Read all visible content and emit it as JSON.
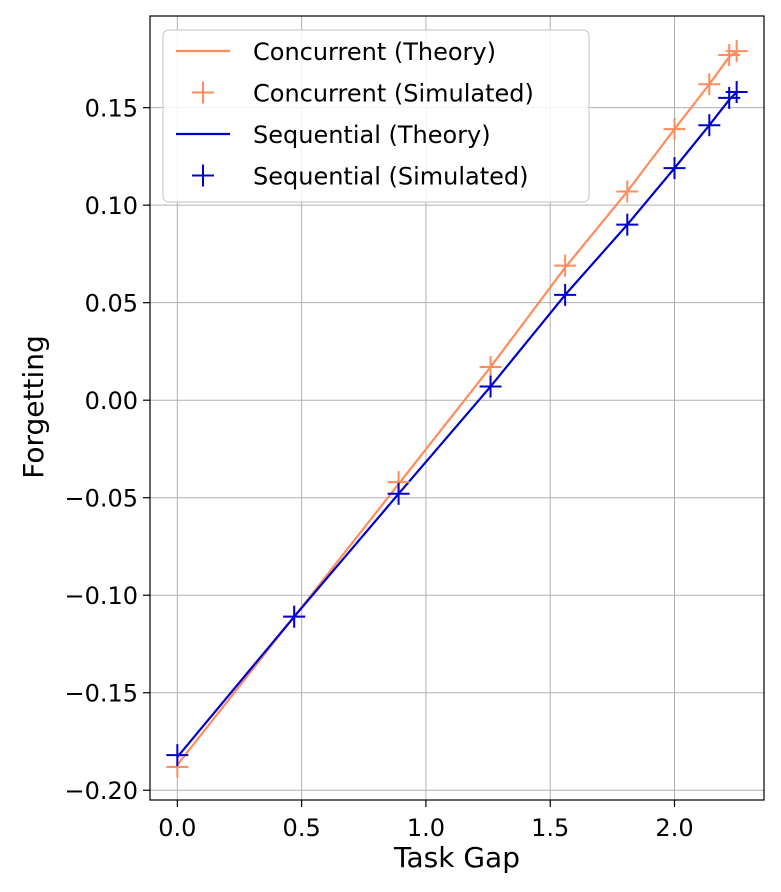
{
  "chart_data": {
    "type": "line",
    "title": "",
    "xlabel": "Task Gap",
    "ylabel": "Forgetting",
    "xlim": [
      -0.11,
      2.36
    ],
    "ylim": [
      -0.205,
      0.197
    ],
    "xticks": [
      0.0,
      0.5,
      1.0,
      1.5,
      2.0
    ],
    "xtick_labels": [
      "0.0",
      "0.5",
      "1.0",
      "1.5",
      "2.0"
    ],
    "yticks": [
      -0.2,
      -0.15,
      -0.1,
      -0.05,
      0.0,
      0.05,
      0.1,
      0.15
    ],
    "ytick_labels": [
      "−0.20",
      "−0.15",
      "−0.10",
      "−0.05",
      "0.00",
      "0.05",
      "0.10",
      "0.15"
    ],
    "grid": true,
    "legend_position": "top-left",
    "series": [
      {
        "name": "Concurrent (Theory)",
        "kind": "line",
        "color": "#ff8c5a",
        "x": [
          0.0,
          0.47,
          0.89,
          1.26,
          1.56,
          1.81,
          2.0,
          2.14,
          2.22,
          2.25
        ],
        "y": [
          -0.187,
          -0.111,
          -0.043,
          0.017,
          0.068,
          0.107,
          0.139,
          0.162,
          0.176,
          0.179
        ]
      },
      {
        "name": "Concurrent (Simulated)",
        "kind": "marker",
        "color": "#ff8c5a",
        "x": [
          0.0,
          0.47,
          0.89,
          1.26,
          1.56,
          1.81,
          2.0,
          2.14,
          2.22,
          2.25
        ],
        "y": [
          -0.188,
          -0.111,
          -0.042,
          0.017,
          0.069,
          0.107,
          0.139,
          0.162,
          0.177,
          0.179
        ]
      },
      {
        "name": "Sequential (Theory)",
        "kind": "line",
        "color": "#0000cc",
        "x": [
          0.0,
          0.47,
          0.89,
          1.26,
          1.56,
          1.81,
          2.0,
          2.14,
          2.22,
          2.25
        ],
        "y": [
          -0.183,
          -0.111,
          -0.048,
          0.007,
          0.054,
          0.09,
          0.119,
          0.141,
          0.154,
          0.158
        ]
      },
      {
        "name": "Sequential (Simulated)",
        "kind": "marker",
        "color": "#0000cc",
        "x": [
          0.0,
          0.47,
          0.89,
          1.26,
          1.56,
          1.81,
          2.0,
          2.14,
          2.22,
          2.25
        ],
        "y": [
          -0.182,
          -0.111,
          -0.048,
          0.007,
          0.054,
          0.09,
          0.119,
          0.141,
          0.155,
          0.158
        ]
      }
    ]
  }
}
